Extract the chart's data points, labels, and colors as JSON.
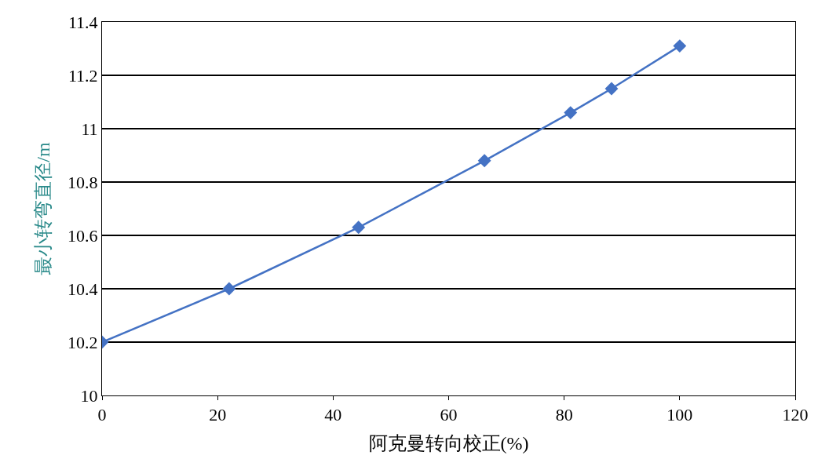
{
  "chart_data": {
    "type": "line",
    "xlabel": "阿克曼转向校正(%)",
    "ylabel": "最小转弯直径/m",
    "x": [
      0,
      22,
      44.4,
      66.2,
      81.1,
      88.2,
      100
    ],
    "series": [
      {
        "color": "#4472c4",
        "values": [
          10.2,
          10.4,
          10.63,
          10.88,
          11.06,
          11.15,
          11.31
        ]
      }
    ],
    "xlim": [
      0,
      120
    ],
    "xticks": [
      0,
      20,
      40,
      60,
      80,
      100,
      120
    ],
    "ylim": [
      10,
      11.4
    ],
    "yticks": [
      10,
      10.2,
      10.4,
      10.6,
      10.8,
      11,
      11.2,
      11.4
    ],
    "grid": "y",
    "marker": "diamond",
    "line_style": "solid"
  }
}
